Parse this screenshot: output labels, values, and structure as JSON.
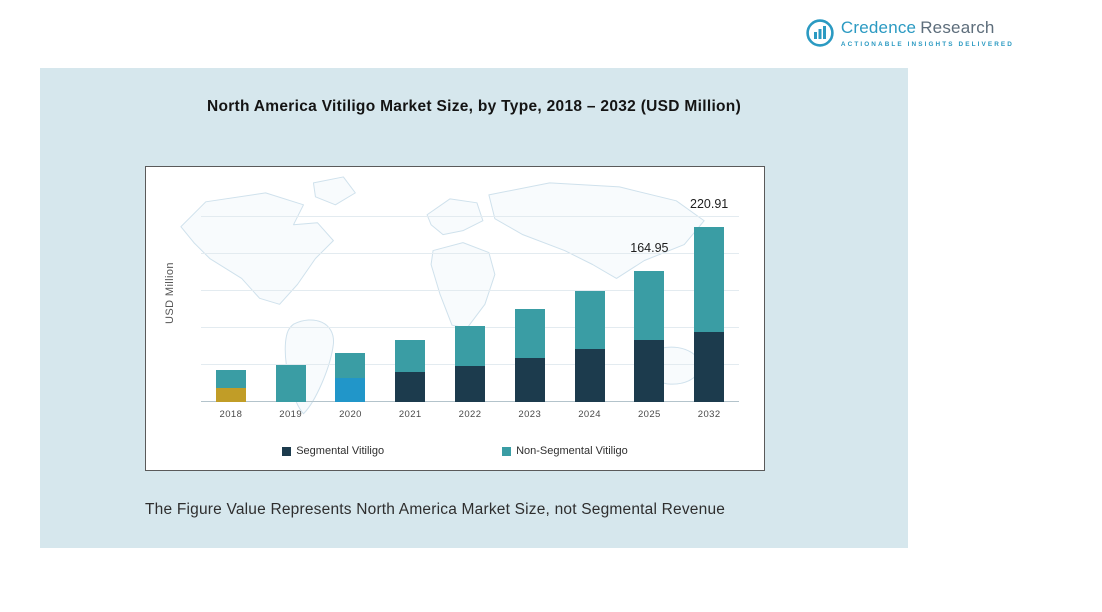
{
  "logo": {
    "brand_primary": "Credence",
    "brand_secondary": "Research",
    "tagline": "Actionable Insights Delivered"
  },
  "title": "North America Vitiligo Market Size, by Type, 2018 – 2032 (USD Million)",
  "footnote": "The Figure Value Represents North America Market Size, not Segmental Revenue",
  "chart_data": {
    "type": "bar",
    "stacked": true,
    "title": "North America Vitiligo Market Size, by Type, 2018 – 2032 (USD Million)",
    "ylabel": "USD Million",
    "xlabel": "",
    "categories": [
      "2018",
      "2019",
      "2020",
      "2021",
      "2022",
      "2023",
      "2024",
      "2025",
      "2032"
    ],
    "series": [
      {
        "name": "Segmental Vitiligo",
        "color": "#1c3b4d",
        "values": [
          18,
          0,
          30,
          38,
          46,
          56,
          67,
          78,
          88
        ]
      },
      {
        "name": "Non-Segmental Vitiligo",
        "color": "#3a9da4",
        "values": [
          23,
          47,
          32,
          40,
          50,
          61,
          73,
          86.95,
          132.91
        ]
      }
    ],
    "totals": [
      41,
      47,
      62,
      78,
      96,
      117,
      140,
      164.95,
      220.91
    ],
    "segment_color_overrides": {
      "2018": "#c19d27",
      "2020": "#2196c9"
    },
    "data_labels": [
      {
        "category": "2025",
        "value": "164.95"
      },
      {
        "category": "2032",
        "value": "220.91"
      }
    ],
    "ylim": [
      0,
      280
    ],
    "gridlines": true,
    "legend_position": "bottom-inside"
  },
  "colors": {
    "panel_background": "#d6e7ed",
    "segmental": "#1c3b4d",
    "non_segmental": "#3a9da4",
    "accent_2018": "#c19d27",
    "accent_2020": "#2196c9",
    "brand_teal": "#2b9ac2"
  }
}
